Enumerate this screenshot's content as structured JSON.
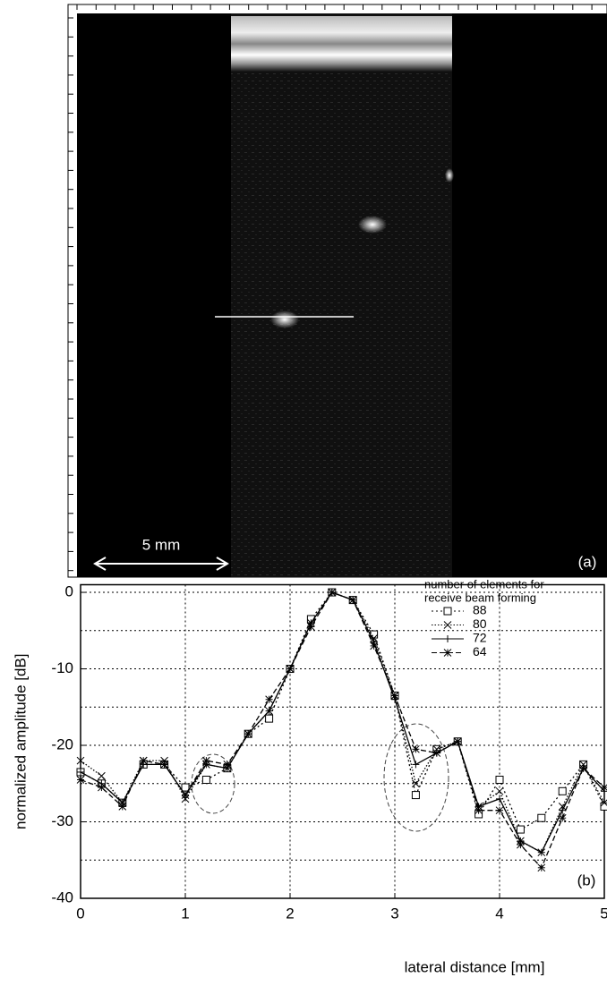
{
  "image_panel": {
    "scale_label": "5 mm",
    "panel_label": "(a)"
  },
  "chart_data": {
    "type": "line",
    "xlabel": "lateral distance [mm]",
    "ylabel": "normalized amplitude [dB]",
    "panel_label": "(b)",
    "legend_title": "number of elements for receive beam forming",
    "xlim": [
      0,
      5
    ],
    "xticks": [
      0,
      1,
      2,
      3,
      4,
      5
    ],
    "ylim": [
      -40,
      1
    ],
    "yticks": [
      0,
      -10,
      -20,
      -30,
      -40
    ],
    "minor_grid_y": [
      -5,
      -15,
      -25,
      -35
    ],
    "grid": true,
    "legend": "upper right",
    "x": [
      0,
      0.2,
      0.4,
      0.6,
      0.8,
      1.0,
      1.2,
      1.4,
      1.6,
      1.8,
      2.0,
      2.2,
      2.4,
      2.6,
      2.8,
      3.0,
      3.2,
      3.4,
      3.6,
      3.8,
      4.0,
      4.2,
      4.4,
      4.6,
      4.8,
      5.0
    ],
    "series": [
      {
        "name": "88",
        "color": "#000",
        "marker": "square",
        "dash": "2,3",
        "values": [
          -23.5,
          -25,
          -27.5,
          -22.5,
          -22.5,
          -25.5,
          -24.5,
          -23,
          -18.5,
          -16.5,
          -10,
          -3.5,
          0,
          -1,
          -5.5,
          -13.5,
          -26.5,
          -20.5,
          -19.5,
          -29,
          -24.5,
          -31,
          -29.5,
          -26,
          -22.5,
          -28
        ]
      },
      {
        "name": "80",
        "color": "#000",
        "marker": "cross",
        "dash": "1.5,2",
        "values": [
          -22,
          -24,
          -27.5,
          -22,
          -22,
          -27,
          -22.5,
          -23,
          -18.5,
          -15.5,
          -10,
          -4,
          0,
          -1,
          -6,
          -13.5,
          -25,
          -20.5,
          -19.5,
          -28,
          -26,
          -32.5,
          -34,
          -28,
          -22.5,
          -27.5
        ]
      },
      {
        "name": "72",
        "color": "#000",
        "marker": "plus",
        "dash": "none",
        "values": [
          -23.5,
          -25,
          -27.5,
          -22.5,
          -22.5,
          -26.5,
          -22.5,
          -23,
          -18.5,
          -15.5,
          -10,
          -4,
          0,
          -1,
          -6.5,
          -14,
          -22.5,
          -21,
          -19.5,
          -28,
          -27,
          -32.5,
          -34,
          -28.5,
          -23,
          -26
        ]
      },
      {
        "name": "64",
        "color": "#000",
        "marker": "star",
        "dash": "6,3",
        "values": [
          -24.5,
          -25.5,
          -28,
          -22,
          -22.5,
          -26.5,
          -22,
          -22.5,
          -18.5,
          -14,
          -10,
          -4.5,
          0,
          -1,
          -7,
          -13.5,
          -20.5,
          -21,
          -19.5,
          -28.5,
          -28.5,
          -33,
          -36,
          -29.5,
          -23,
          -25.5
        ]
      }
    ]
  }
}
